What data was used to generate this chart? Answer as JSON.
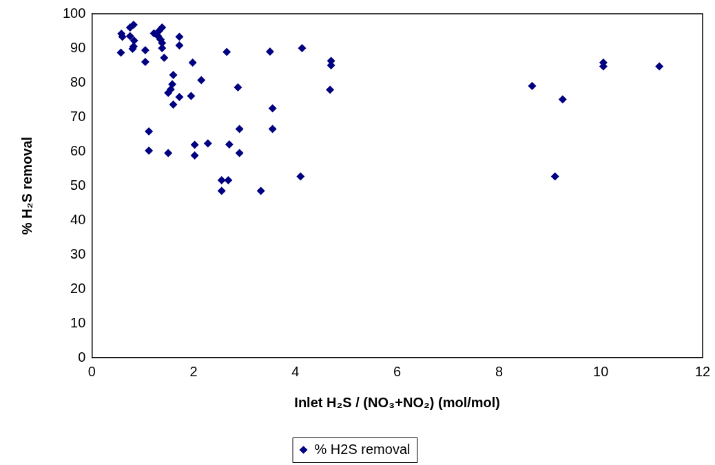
{
  "chart_data": {
    "type": "scatter",
    "xlabel": "Inlet H₂S / (NO₃+NO₂) (mol/mol)",
    "ylabel": "% H₂S removal",
    "xlim": [
      0,
      12
    ],
    "xticks": [
      0,
      2,
      4,
      6,
      8,
      10,
      12
    ],
    "ylim": [
      0,
      100
    ],
    "yticks": [
      0,
      10,
      20,
      30,
      40,
      50,
      60,
      70,
      80,
      90,
      100
    ],
    "grid": false,
    "legend": "bottom",
    "marker": "diamond",
    "series": [
      {
        "name": "% H2S removal",
        "color": "#000080",
        "x": [
          0.57,
          0.58,
          0.6,
          0.75,
          0.75,
          0.82,
          0.8,
          0.82,
          0.83,
          1.05,
          1.05,
          1.22,
          1.3,
          1.32,
          1.35,
          1.38,
          1.38,
          1.38,
          1.42,
          1.72,
          1.72,
          1.98,
          1.6,
          2.15,
          1.58,
          1.55,
          1.5,
          1.72,
          1.6,
          1.95,
          1.12,
          1.12,
          1.5,
          2.02,
          2.02,
          2.28,
          2.65,
          2.87,
          2.9,
          2.9,
          2.7,
          2.55,
          2.68,
          2.55,
          3.32,
          3.5,
          3.55,
          3.55,
          4.13,
          4.1,
          4.7,
          4.7,
          4.68,
          8.65,
          9.25,
          9.1,
          10.05,
          10.05,
          11.15
        ],
        "values": [
          88.7,
          94.2,
          93.3,
          93.5,
          96,
          96.8,
          89.8,
          90.5,
          92.2,
          89.4,
          86,
          94.3,
          93.5,
          95,
          92.5,
          91.5,
          96,
          90,
          87.2,
          93.3,
          90.8,
          85.8,
          82.2,
          80.7,
          79.5,
          78,
          77,
          75.8,
          73.6,
          76.1,
          65.8,
          60.2,
          59.5,
          61.9,
          58.8,
          62.3,
          88.9,
          78.6,
          66.5,
          59.5,
          62,
          51.6,
          51.6,
          48.5,
          48.5,
          89,
          72.5,
          66.5,
          90,
          52.7,
          86.3,
          85,
          77.9,
          79,
          75.1,
          52.7,
          85.8,
          84.7,
          84.7
        ]
      }
    ]
  }
}
